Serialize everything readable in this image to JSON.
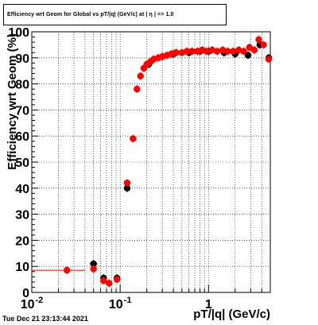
{
  "title": "Efficiency wrt Geom for Global vs pT/|q| (GeV/c) at | η | <= 1.0",
  "timestamp": "Tue Dec 21 23:13:44 2021",
  "chart_data": {
    "type": "scatter",
    "title": "Efficiency wrt Geom for Global vs pT/|q| (GeV/c) at | η | <= 1.0",
    "xlabel": "pT/|q| (GeV/c)",
    "ylabel": "Efficiency wrt Geom (%)",
    "xscale": "log",
    "xlim": [
      0.01,
      5.0
    ],
    "ylim": [
      0,
      100
    ],
    "grid": true,
    "x_tick_labels": [
      {
        "value": 0.01,
        "label": "10",
        "exp": "-2"
      },
      {
        "value": 0.1,
        "label": "10",
        "exp": "-1"
      },
      {
        "value": 1,
        "label": "1",
        "exp": ""
      }
    ],
    "y_ticks": [
      0,
      10,
      20,
      30,
      40,
      50,
      60,
      70,
      80,
      90,
      100
    ],
    "series": [
      {
        "color": "#000000",
        "points": [
          {
            "x": 0.05,
            "y": 11.0,
            "xerr": [
              0.045,
              0.055
            ]
          },
          {
            "x": 0.065,
            "y": 5.5
          },
          {
            "x": 0.092,
            "y": 5.5
          },
          {
            "x": 0.12,
            "y": 40.0
          },
          {
            "x": 0.21,
            "y": 87.5
          },
          {
            "x": 0.3,
            "y": 90.5
          },
          {
            "x": 0.4,
            "y": 91.5
          },
          {
            "x": 0.6,
            "y": 92.0
          },
          {
            "x": 0.8,
            "y": 92.5
          },
          {
            "x": 1.0,
            "y": 92.5
          },
          {
            "x": 1.5,
            "y": 92.0
          },
          {
            "x": 2.0,
            "y": 91.5
          },
          {
            "x": 2.8,
            "y": 91.0
          },
          {
            "x": 3.8,
            "y": 95.0
          },
          {
            "x": 4.8,
            "y": 90.0
          }
        ]
      },
      {
        "color": "#ff0000",
        "points": [
          {
            "x": 0.025,
            "y": 8.5,
            "xerr": [
              0.01,
              0.04
            ]
          },
          {
            "x": 0.05,
            "y": 9.0
          },
          {
            "x": 0.065,
            "y": 4.5
          },
          {
            "x": 0.075,
            "y": 3.5
          },
          {
            "x": 0.092,
            "y": 5.0
          },
          {
            "x": 0.12,
            "y": 42.0
          },
          {
            "x": 0.14,
            "y": 59.0
          },
          {
            "x": 0.155,
            "y": 78.0
          },
          {
            "x": 0.17,
            "y": 83.0
          },
          {
            "x": 0.185,
            "y": 86.0
          },
          {
            "x": 0.2,
            "y": 87.5
          },
          {
            "x": 0.22,
            "y": 88.5
          },
          {
            "x": 0.24,
            "y": 89.5
          },
          {
            "x": 0.27,
            "y": 90.0
          },
          {
            "x": 0.3,
            "y": 90.5
          },
          {
            "x": 0.34,
            "y": 91.0
          },
          {
            "x": 0.38,
            "y": 91.5
          },
          {
            "x": 0.43,
            "y": 92.0
          },
          {
            "x": 0.5,
            "y": 92.0
          },
          {
            "x": 0.57,
            "y": 92.5
          },
          {
            "x": 0.65,
            "y": 92.5
          },
          {
            "x": 0.75,
            "y": 92.5
          },
          {
            "x": 0.85,
            "y": 93.0
          },
          {
            "x": 0.95,
            "y": 92.5
          },
          {
            "x": 1.1,
            "y": 93.0
          },
          {
            "x": 1.25,
            "y": 92.5
          },
          {
            "x": 1.45,
            "y": 93.0
          },
          {
            "x": 1.65,
            "y": 92.5
          },
          {
            "x": 1.9,
            "y": 92.5
          },
          {
            "x": 2.2,
            "y": 93.0
          },
          {
            "x": 2.5,
            "y": 92.5
          },
          {
            "x": 2.9,
            "y": 94.0
          },
          {
            "x": 3.3,
            "y": 93.0
          },
          {
            "x": 3.7,
            "y": 97.0
          },
          {
            "x": 4.2,
            "y": 95.0
          },
          {
            "x": 4.8,
            "y": 89.5
          }
        ]
      }
    ]
  }
}
